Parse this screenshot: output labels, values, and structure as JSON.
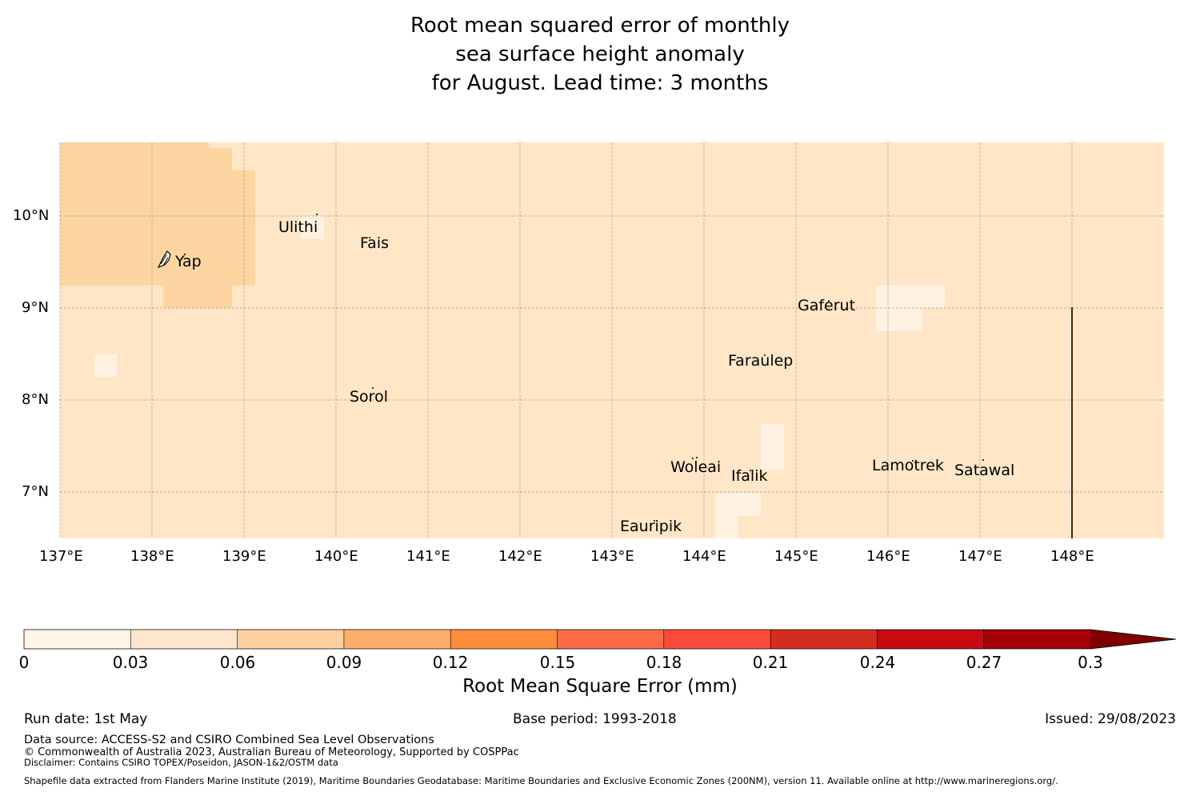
{
  "title": {
    "line1": "Root mean squared error of monthly",
    "line2": "sea surface height anomaly",
    "line3": "for August. Lead time: 3 months"
  },
  "map": {
    "lat_labels": [
      "10°N",
      "9°N",
      "8°N",
      "7°N"
    ],
    "lon_labels": [
      "137°E",
      "138°E",
      "139°E",
      "140°E",
      "141°E",
      "142°E",
      "143°E",
      "144°E",
      "145°E",
      "146°E",
      "147°E",
      "148°E"
    ],
    "background_color": "#fee6c7",
    "places": [
      {
        "name": "Ulithi"
      },
      {
        "name": "Fais"
      },
      {
        "name": "Yap"
      },
      {
        "name": "Gaferut"
      },
      {
        "name": "Faraulep"
      },
      {
        "name": "Sorol"
      },
      {
        "name": "Woleai"
      },
      {
        "name": "Ifalik"
      },
      {
        "name": "Lamotrek"
      },
      {
        "name": "Satawal"
      },
      {
        "name": "Eauripik"
      }
    ]
  },
  "colorbar": {
    "title": "Root Mean Square Error (mm)",
    "ticks": [
      "0",
      "0.03",
      "0.06",
      "0.09",
      "0.12",
      "0.15",
      "0.18",
      "0.21",
      "0.24",
      "0.27",
      "0.3"
    ],
    "colors": [
      "#fff5eb",
      "#fee6ce",
      "#fdd0a2",
      "#fdae6b",
      "#fd8d3c",
      "#fc6b45",
      "#fb4b3a",
      "#d42d20",
      "#c70b11",
      "#a50008",
      "#7f0000"
    ]
  },
  "footer": {
    "run_date": "Run date: 1st May",
    "base_period": "Base period: 1993-2018",
    "issued": "Issued: 29/08/2023",
    "data_source": "Data source: ACCESS-S2 and CSIRO Combined Sea Level Observations",
    "copyright": "© Commonwealth of Australia 2023, Australian Bureau of Meteorology, Supported by COSPPac",
    "disclaimer": "Disclaimer: Contains CSIRO TOPEX/Poseidon, JASON-1&2/OSTM data",
    "shapefile": "Shapefile data extracted from Flanders Marine Institute (2019), Maritime Boundaries Geodatabase: Maritime Boundaries and Exclusive Economic Zones (200NM), version 11. Available online at http://www.marineregions.org/."
  }
}
